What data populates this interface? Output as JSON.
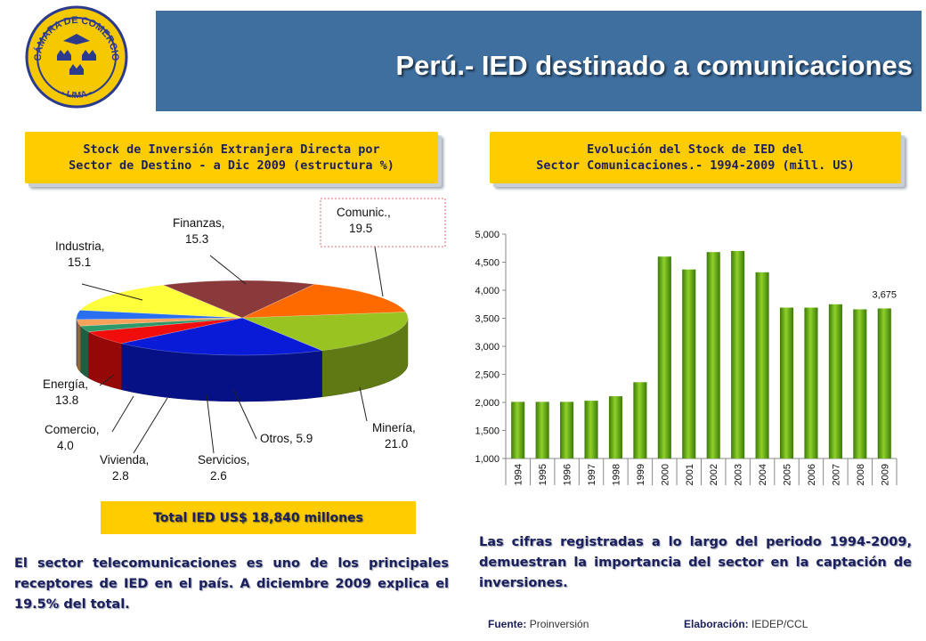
{
  "header": {
    "title": "Perú.- IED destinado a comunicaciones",
    "logo_text_top": "CÁMARA DE COMERCIO",
    "logo_text_bottom": "- LIMA -"
  },
  "left_panel": {
    "heading_line1": "Stock de Inversión Extranjera Directa por",
    "heading_line2": "Sector de Destino - a Dic 2009 (estructura %)",
    "total": "Total IED US$ 18,840 millones",
    "paragraph": "El sector telecomunicaciones es uno de los principales receptores de IED en el país. A diciembre 2009 explica el 19.5% del total."
  },
  "right_panel": {
    "heading_line1": "Evolución del Stock de IED del",
    "heading_line2": "Sector Comunicaciones.- 1994-2009 (mill. US)",
    "paragraph": "Las cifras registradas a lo largo del periodo 1994-2009, demuestran la importancia del sector en la captación de inversiones."
  },
  "footer": {
    "source_label": "Fuente:",
    "source_value": "Proinversión",
    "made_label": "Elaboración:",
    "made_value": "IEDEP/CCL"
  },
  "chart_data": [
    {
      "type": "pie",
      "slices": [
        {
          "name": "Comunic.",
          "label_line1": "Comunic.,",
          "label_line2": "19.5",
          "value": 19.5,
          "color": "#99c321"
        },
        {
          "name": "Minería",
          "label_line1": "Minería,",
          "label_line2": "21.0",
          "value": 21.0,
          "color": "#0a1bd8"
        },
        {
          "name": "Otros",
          "label_line1": "Otros, 5.9",
          "label_line2": "",
          "value": 5.9,
          "color": "#f20d0d"
        },
        {
          "name": "Servicios",
          "label_line1": "Servicios,",
          "label_line2": "2.6",
          "value": 2.6,
          "color": "#2e9a6a"
        },
        {
          "name": "Vivienda",
          "label_line1": "Vivienda,",
          "label_line2": "2.8",
          "value": 2.8,
          "color": "#f7a25a"
        },
        {
          "name": "Comercio",
          "label_line1": "Comercio,",
          "label_line2": "4.0",
          "value": 4.0,
          "color": "#2a6ff0"
        },
        {
          "name": "Energía",
          "label_line1": "Energía,",
          "label_line2": "13.8",
          "value": 13.8,
          "color": "#ffff3c"
        },
        {
          "name": "Industria",
          "label_line1": "Industria,",
          "label_line2": "15.1",
          "value": 15.1,
          "color": "#8a3a3a"
        },
        {
          "name": "Finanzas",
          "label_line1": "Finanzas,",
          "label_line2": "15.3",
          "value": 15.3,
          "color": "#ff6a00"
        }
      ]
    },
    {
      "type": "bar",
      "categories": [
        "1994",
        "1995",
        "1996",
        "1997",
        "1998",
        "1999",
        "2000",
        "2001",
        "2002",
        "2003",
        "2004",
        "2005",
        "2006",
        "2007",
        "2008",
        "2009"
      ],
      "values": [
        2010,
        2010,
        2010,
        2030,
        2110,
        2360,
        4600,
        4370,
        4680,
        4700,
        4320,
        3690,
        3690,
        3750,
        3660,
        3675
      ],
      "data_label": "3,675",
      "ylim": [
        1000,
        5000
      ],
      "yticks": [
        "1,000",
        "1,500",
        "2,000",
        "2,500",
        "3,000",
        "3,500",
        "4,000",
        "4,500",
        "5,000"
      ],
      "bar_color": "#6aaa18"
    }
  ]
}
